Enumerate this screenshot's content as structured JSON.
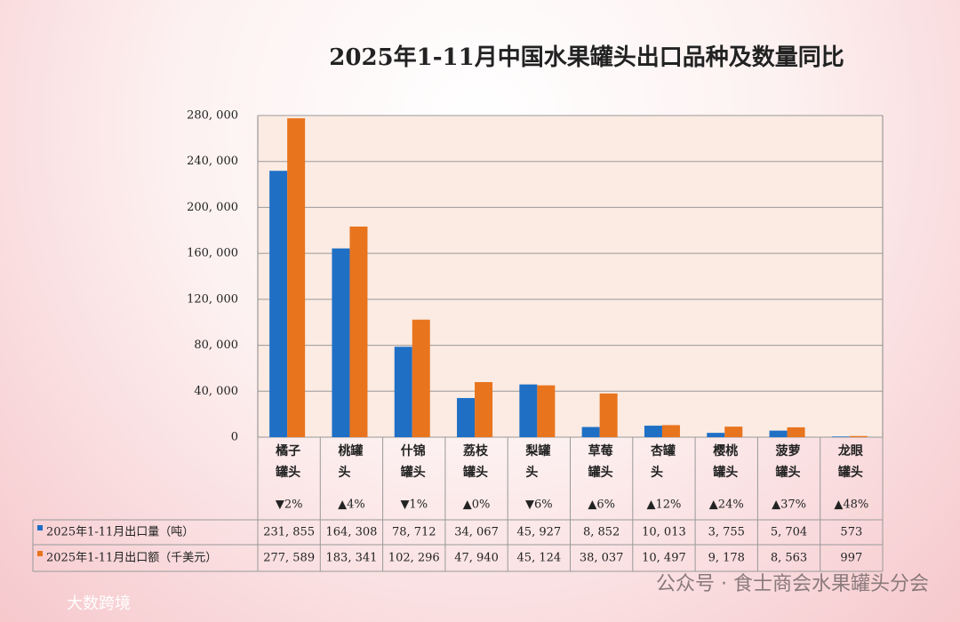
{
  "chart_data": {
    "type": "bar",
    "title": "2025年1-11月中国水果罐头出口品种及数量同比",
    "categories": [
      "橘子罐头",
      "桃罐头",
      "什锦罐头",
      "荔枝罐头",
      "梨罐头",
      "草莓罐头",
      "杏罐头",
      "樱桃罐头",
      "菠萝罐头",
      "龙眼罐头"
    ],
    "changes": [
      "▼2%",
      "▲4%",
      "▼1%",
      "▲0%",
      "▼6%",
      "▲6%",
      "▲12%",
      "▲24%",
      "▲37%",
      "▲48%"
    ],
    "series": [
      {
        "name": "2025年1-11月出口量（吨）",
        "color": "#1f6fc5",
        "values": [
          231855,
          164308,
          78712,
          34067,
          45927,
          8852,
          10013,
          3755,
          5704,
          573
        ],
        "value_labels": [
          "231, 855",
          "164, 308",
          "78, 712",
          "34, 067",
          "45, 927",
          "8, 852",
          "10, 013",
          "3, 755",
          "5, 704",
          "573"
        ]
      },
      {
        "name": "2025年1-11月出口额（千美元）",
        "color": "#e8741e",
        "values": [
          277589,
          183341,
          102296,
          47940,
          45124,
          38037,
          10497,
          9178,
          8563,
          997
        ],
        "value_labels": [
          "277, 589",
          "183, 341",
          "102, 296",
          "47, 940",
          "45, 124",
          "38, 037",
          "10, 497",
          "9, 178",
          "8, 563",
          "997"
        ]
      }
    ],
    "ylim": [
      0,
      280000
    ],
    "yticks": [
      0,
      {
        "value": 40000,
        "label": "40, 000"
      },
      {
        "value": 80000,
        "label": "80, 000"
      },
      {
        "value": 120000,
        "label": "120, 000"
      },
      {
        "value": 160000,
        "label": "160, 000"
      },
      {
        "value": 200000,
        "label": "200, 000"
      },
      {
        "value": 240000,
        "label": "240, 000"
      },
      {
        "value": 280000,
        "label": "280, 000"
      }
    ],
    "grid": true
  },
  "watermark": {
    "left": "大数跨境",
    "right": "公众号 · 食士商会水果罐头分会"
  }
}
